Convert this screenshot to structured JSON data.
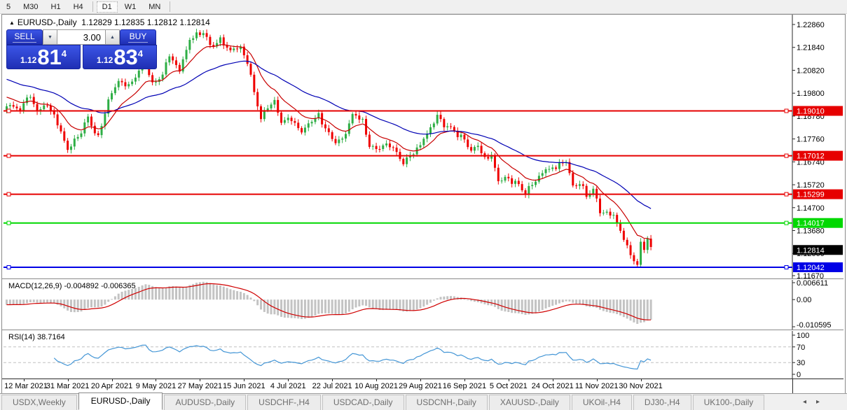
{
  "toolbar": {
    "items": [
      {
        "label": "5",
        "active": false
      },
      {
        "label": "M30",
        "active": false
      },
      {
        "label": "H1",
        "active": false
      },
      {
        "label": "H4",
        "active": false
      },
      {
        "sep": true
      },
      {
        "label": "D1",
        "active": true
      },
      {
        "label": "W1",
        "active": false
      },
      {
        "label": "MN",
        "active": false
      },
      {
        "sep": true
      }
    ]
  },
  "trade_panel": {
    "sell_label": "SELL",
    "buy_label": "BUY",
    "volume": "3.00",
    "down_arrow": "▼",
    "up_arrow": "▲",
    "sell_small": "1.12",
    "sell_big": "81",
    "sell_sup": "4",
    "buy_small": "1.12",
    "buy_big": "83",
    "buy_sup": "4"
  },
  "chart_data": {
    "type": "candlestick",
    "symbol": "EURUSD-,Daily",
    "collapse_arrow": "▲",
    "ohlc_text": "1.12829 1.12835 1.12812 1.12814",
    "ylim": [
      1.1167,
      1.2286
    ],
    "y_axis_ticks": [
      {
        "label": "1.22860",
        "value": 1.2286
      },
      {
        "label": "1.21840",
        "value": 1.2184
      },
      {
        "label": "1.20820",
        "value": 1.2082
      },
      {
        "label": "1.19800",
        "value": 1.198
      },
      {
        "label": "1.18780",
        "value": 1.1878
      },
      {
        "label": "1.17760",
        "value": 1.1776
      },
      {
        "label": "1.16740",
        "value": 1.1674
      },
      {
        "label": "1.15720",
        "value": 1.1572
      },
      {
        "label": "1.14700",
        "value": 1.147
      },
      {
        "label": "1.13680",
        "value": 1.1368
      },
      {
        "label": "1.12660",
        "value": 1.1266
      },
      {
        "label": "1.11670",
        "value": 1.1167
      }
    ],
    "x_axis_ticks": [
      {
        "label": "12 Mar 2021",
        "index": 5
      },
      {
        "label": "31 Mar 2021",
        "index": 18
      },
      {
        "label": "20 Apr 2021",
        "index": 31
      },
      {
        "label": "9 May 2021",
        "index": 44
      },
      {
        "label": "27 May 2021",
        "index": 57
      },
      {
        "label": "15 Jun 2021",
        "index": 70
      },
      {
        "label": "4 Jul 2021",
        "index": 83
      },
      {
        "label": "22 Jul 2021",
        "index": 96
      },
      {
        "label": "10 Aug 2021",
        "index": 109
      },
      {
        "label": "29 Aug 2021",
        "index": 122
      },
      {
        "label": "16 Sep 2021",
        "index": 135
      },
      {
        "label": "5 Oct 2021",
        "index": 148
      },
      {
        "label": "24 Oct 2021",
        "index": 161
      },
      {
        "label": "11 Nov 2021",
        "index": 174
      },
      {
        "label": "30 Nov 2021",
        "index": 187
      }
    ],
    "hlines": [
      {
        "label": "1.19010",
        "price": 1.1901,
        "color": "#e60000"
      },
      {
        "label": "1.17012",
        "price": 1.17012,
        "color": "#e60000"
      },
      {
        "label": "1.15299",
        "price": 1.15299,
        "color": "#e60000"
      },
      {
        "label": "1.14017",
        "price": 1.14017,
        "color": "#00d800"
      },
      {
        "label": "1.12042",
        "price": 1.12042,
        "color": "#0000e6"
      }
    ],
    "current_price": {
      "label": "1.12814",
      "value": 1.12814,
      "color": "#000000"
    },
    "num_candles": 191,
    "close_anchors": [
      [
        0,
        1.1915
      ],
      [
        2,
        1.193
      ],
      [
        4,
        1.1895
      ],
      [
        6,
        1.1975
      ],
      [
        9,
        1.1905
      ],
      [
        12,
        1.1925
      ],
      [
        14,
        1.188
      ],
      [
        18,
        1.173
      ],
      [
        21,
        1.1785
      ],
      [
        24,
        1.187
      ],
      [
        27,
        1.178
      ],
      [
        30,
        1.195
      ],
      [
        33,
        1.2035
      ],
      [
        36,
        1.201
      ],
      [
        39,
        1.208
      ],
      [
        41,
        1.2125
      ],
      [
        43,
        1.2015
      ],
      [
        46,
        1.2065
      ],
      [
        48,
        1.215
      ],
      [
        51,
        1.208
      ],
      [
        54,
        1.222
      ],
      [
        58,
        1.2255
      ],
      [
        60,
        1.219
      ],
      [
        63,
        1.2215
      ],
      [
        66,
        1.217
      ],
      [
        69,
        1.2185
      ],
      [
        71,
        1.2115
      ],
      [
        73,
        1.199
      ],
      [
        75,
        1.1862
      ],
      [
        77,
        1.1925
      ],
      [
        79,
        1.1938
      ],
      [
        81,
        1.1855
      ],
      [
        84,
        1.1865
      ],
      [
        87,
        1.1805
      ],
      [
        89,
        1.1845
      ],
      [
        92,
        1.188
      ],
      [
        94,
        1.1825
      ],
      [
        96,
        1.1772
      ],
      [
        99,
        1.1768
      ],
      [
        102,
        1.1885
      ],
      [
        105,
        1.186
      ],
      [
        107,
        1.174
      ],
      [
        110,
        1.1735
      ],
      [
        113,
        1.1755
      ],
      [
        115,
        1.171
      ],
      [
        117,
        1.1672
      ],
      [
        119,
        1.17
      ],
      [
        122,
        1.175
      ],
      [
        124,
        1.18
      ],
      [
        127,
        1.1878
      ],
      [
        129,
        1.184
      ],
      [
        132,
        1.1812
      ],
      [
        135,
        1.177
      ],
      [
        137,
        1.1725
      ],
      [
        139,
        1.1745
      ],
      [
        141,
        1.169
      ],
      [
        143,
        1.17
      ],
      [
        145,
        1.1592
      ],
      [
        148,
        1.16
      ],
      [
        151,
        1.157
      ],
      [
        153,
        1.1535
      ],
      [
        156,
        1.1592
      ],
      [
        159,
        1.164
      ],
      [
        162,
        1.165
      ],
      [
        165,
        1.1682
      ],
      [
        167,
        1.156
      ],
      [
        169,
        1.1585
      ],
      [
        171,
        1.152
      ],
      [
        173,
        1.1555
      ],
      [
        175,
        1.145
      ],
      [
        177,
        1.1448
      ],
      [
        179,
        1.1432
      ],
      [
        181,
        1.137
      ],
      [
        183,
        1.129
      ],
      [
        185,
        1.124
      ],
      [
        186,
        1.1205
      ],
      [
        187,
        1.1315
      ],
      [
        188,
        1.129
      ],
      [
        189,
        1.1336
      ],
      [
        190,
        1.1281
      ]
    ],
    "colors": {
      "up": "#2eae45",
      "down": "#ef0000",
      "ema_fast": "#c80000",
      "ema_slow": "#0000b4",
      "macd_bar": "#c3c3c3",
      "macd_signal": "#d00000",
      "rsi_line": "#4496d6",
      "level_dash": "#c0c0c0"
    },
    "moving_averages": [
      {
        "name": "ema-fast",
        "period": 12,
        "color": "#c80000"
      },
      {
        "name": "ema-slow",
        "period": 40,
        "color": "#0000b4"
      }
    ],
    "macd": {
      "title": "MACD(12,26,9)",
      "values_text": "-0.004892 -0.006365",
      "fast": 12,
      "slow": 26,
      "signal": 9,
      "axis_ticks": [
        {
          "label": "0.006611",
          "value": 0.006611
        },
        {
          "label": "0.00",
          "value": 0
        },
        {
          "label": "-0.010595",
          "value": -0.010595
        }
      ],
      "ylim": [
        -0.010595,
        0.006611
      ]
    },
    "rsi": {
      "title": "RSI(14)",
      "value_text": "38.7164",
      "period": 14,
      "axis_ticks": [
        {
          "label": "100",
          "value": 100
        },
        {
          "label": "70",
          "value": 70
        },
        {
          "label": "30",
          "value": 30
        },
        {
          "label": "0",
          "value": 0
        }
      ],
      "levels": [
        30,
        70
      ]
    }
  },
  "tabbar": {
    "tabs": [
      {
        "label": "USDX,Weekly",
        "active": false
      },
      {
        "label": "EURUSD-,Daily",
        "active": true
      },
      {
        "label": "AUDUSD-,Daily",
        "active": false
      },
      {
        "label": "USDCHF-,H4",
        "active": false
      },
      {
        "label": "USDCAD-,Daily",
        "active": false
      },
      {
        "label": "USDCNH-,Daily",
        "active": false
      },
      {
        "label": "XAUUSD-,Daily",
        "active": false
      },
      {
        "label": "UKOil-,H4",
        "active": false
      },
      {
        "label": "DJ30-,H4",
        "active": false
      },
      {
        "label": "UK100-,Daily",
        "active": false
      }
    ],
    "left_arrow": "◂",
    "right_arrow": "▸"
  }
}
